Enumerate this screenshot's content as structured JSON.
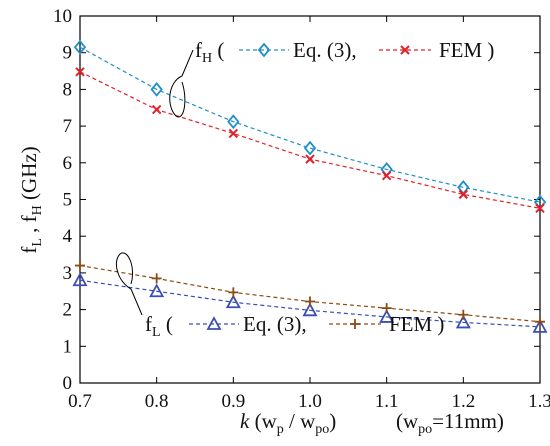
{
  "chart_data": {
    "type": "line",
    "title": "",
    "x": [
      0.7,
      0.8,
      0.9,
      1.0,
      1.1,
      1.2,
      1.3
    ],
    "x_tick_labels": [
      "0.7",
      "0.8",
      "0.9",
      "1.0",
      "1.1",
      "1.2",
      "1.3"
    ],
    "y_ticks": [
      0,
      1,
      2,
      3,
      4,
      5,
      6,
      7,
      8,
      9,
      10
    ],
    "xlim": [
      0.7,
      1.3
    ],
    "ylim": [
      0,
      10
    ],
    "grid": false,
    "xlabel": {
      "k": "k",
      "open": " (w",
      "sub_p": "p",
      "slash": " / w",
      "sub_po": "po",
      "close": ")",
      "note_open": "(w",
      "note_sub": "po",
      "note_close": "=11mm)"
    },
    "ylabel": {
      "fL": "f",
      "sub_L": "L",
      "sep": " ,  f",
      "sub_H": "H",
      "unit": " (GHz)"
    },
    "series": [
      {
        "name": "fH Eq. (3)",
        "group": "fH",
        "method": "Eq. (3)",
        "marker": "diamond",
        "color": "#1f8fc8",
        "values": [
          9.15,
          8.0,
          7.12,
          6.4,
          5.82,
          5.33,
          4.93
        ]
      },
      {
        "name": "fH FEM",
        "group": "fH",
        "method": "FEM",
        "marker": "x",
        "color": "#e0202a",
        "values": [
          8.48,
          7.45,
          6.8,
          6.1,
          5.65,
          5.14,
          4.76
        ]
      },
      {
        "name": "fL Eq. (3)",
        "group": "fL",
        "method": "Eq. (3)",
        "marker": "triangle",
        "color": "#3a4fb5",
        "values": [
          2.8,
          2.5,
          2.2,
          1.98,
          1.8,
          1.65,
          1.53
        ]
      },
      {
        "name": "fL FEM",
        "group": "fL",
        "method": "FEM",
        "marker": "plus",
        "color": "#8a4a14",
        "values": [
          3.2,
          2.85,
          2.47,
          2.22,
          2.04,
          1.86,
          1.67
        ]
      }
    ],
    "annotations": {
      "fH": {
        "label": "f",
        "sub": "H",
        "open": "(",
        "eq": "Eq. (3),",
        "fem": "FEM )"
      },
      "fL": {
        "label": "f",
        "sub": "L",
        "open": "(",
        "eq": "Eq. (3),",
        "fem": "FEM )"
      }
    }
  }
}
